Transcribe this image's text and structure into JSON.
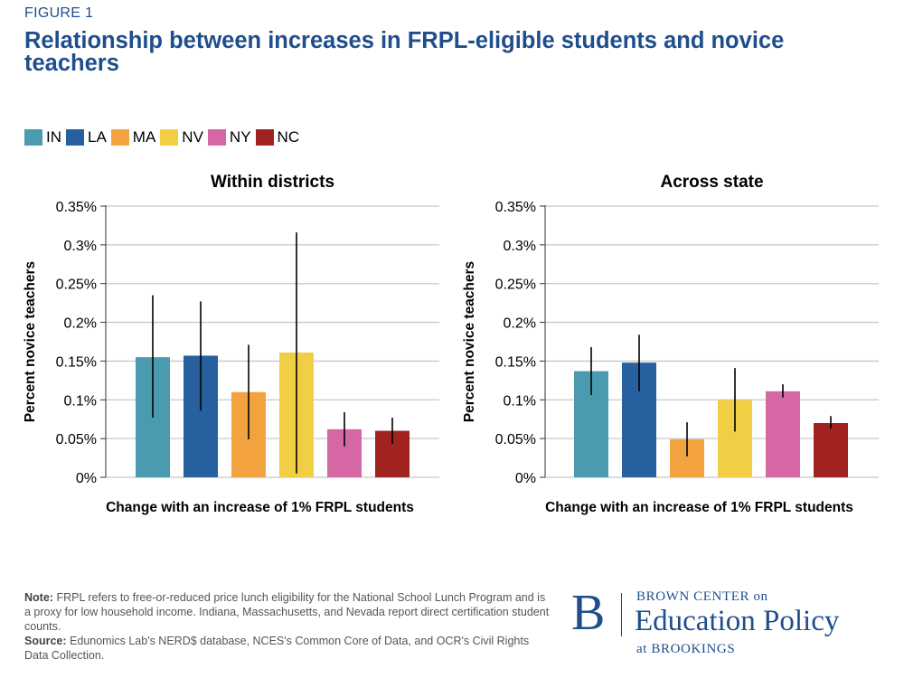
{
  "figure_label": "FIGURE 1",
  "title": "Relationship between increases in FRPL-eligible students and novice teachers",
  "legend": [
    {
      "label": "IN",
      "color": "#4a9bb0"
    },
    {
      "label": "LA",
      "color": "#27609e"
    },
    {
      "label": "MA",
      "color": "#f2a33f"
    },
    {
      "label": "NV",
      "color": "#f0cf45"
    },
    {
      "label": "NY",
      "color": "#d467a4"
    },
    {
      "label": "NC",
      "color": "#a0231f"
    }
  ],
  "chart_data": [
    {
      "type": "bar",
      "title": "Within districts",
      "xlabel": "Change with an increase of 1% FRPL students",
      "ylabel": "Percent novice teachers",
      "categories": [
        "IN",
        "LA",
        "MA",
        "NV",
        "NY",
        "NC"
      ],
      "values": [
        0.155,
        0.157,
        0.11,
        0.161,
        0.062,
        0.06
      ],
      "error_low": [
        0.077,
        0.086,
        0.049,
        0.005,
        0.04,
        0.043
      ],
      "error_high": [
        0.235,
        0.227,
        0.171,
        0.316,
        0.084,
        0.077
      ],
      "ylim": [
        0,
        0.35
      ],
      "yticks": [
        0,
        0.05,
        0.1,
        0.15,
        0.2,
        0.25,
        0.3,
        0.35
      ],
      "ytick_labels": [
        "0%",
        "0.05%",
        "0.1%",
        "0.15%",
        "0.2%",
        "0.25%",
        "0.3%",
        "0.35%"
      ],
      "grid": true
    },
    {
      "type": "bar",
      "title": "Across state",
      "xlabel": "Change with an increase of 1% FRPL students",
      "ylabel": "Percent novice teachers",
      "categories": [
        "IN",
        "LA",
        "MA",
        "NV",
        "NY",
        "NC"
      ],
      "values": [
        0.137,
        0.148,
        0.049,
        0.1,
        0.111,
        0.07
      ],
      "error_low": [
        0.106,
        0.111,
        0.027,
        0.059,
        0.103,
        0.063
      ],
      "error_high": [
        0.168,
        0.184,
        0.071,
        0.141,
        0.12,
        0.079
      ],
      "ylim": [
        0,
        0.35
      ],
      "yticks": [
        0,
        0.05,
        0.1,
        0.15,
        0.2,
        0.25,
        0.3,
        0.35
      ],
      "ytick_labels": [
        "0%",
        "0.05%",
        "0.1%",
        "0.15%",
        "0.2%",
        "0.25%",
        "0.3%",
        "0.35%"
      ],
      "grid": true
    }
  ],
  "note": {
    "note_label": "Note:",
    "note_text": "FRPL refers to free-or-reduced price lunch eligibility for the National School Lunch Program and is a proxy for low household income. Indiana, Massachusetts, and Nevada report direct certification student counts.",
    "source_label": "Source:",
    "source_text": "Edunomics Lab's NERD$ database, NCES's Common Core of Data, and OCR's Civil Rights Data Collection."
  },
  "logo": {
    "mark": "B",
    "line1": "BROWN CENTER on",
    "line2": "Education Policy",
    "line3": "at BROOKINGS"
  }
}
